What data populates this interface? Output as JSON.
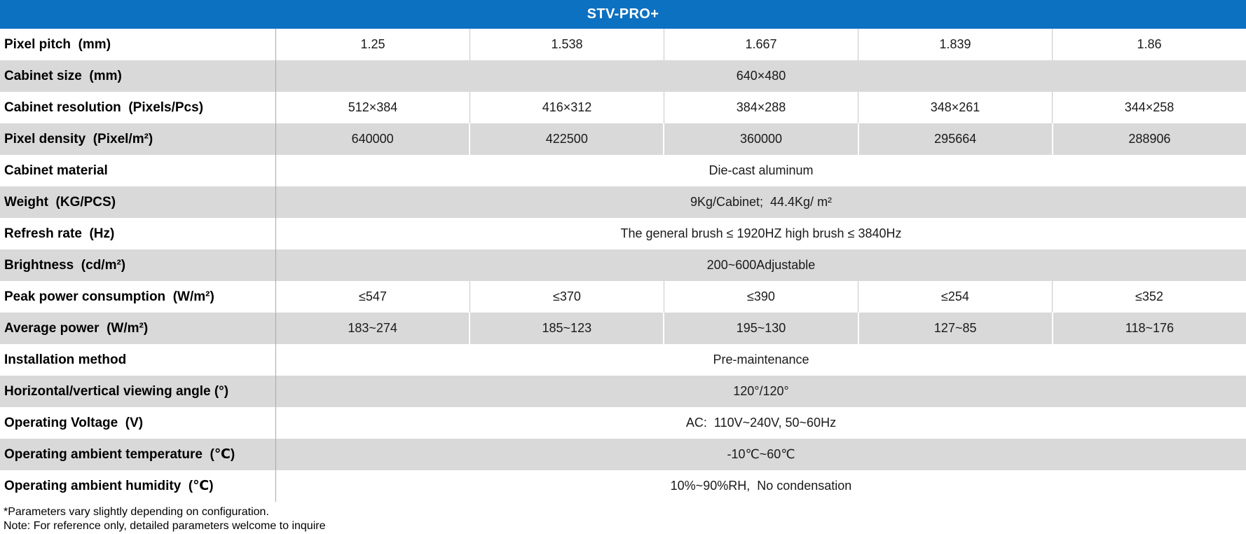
{
  "title": "STV-PRO+",
  "colors": {
    "header_bg": "#0d71c2",
    "header_text": "#ffffff",
    "row_alt_bg": "#d9d9d9",
    "divider": "#a9a9a9"
  },
  "table": {
    "rows": [
      {
        "label": "Pixel pitch  (mm)",
        "values": [
          "1.25",
          "1.538",
          "1.667",
          "1.839",
          "1.86"
        ]
      },
      {
        "label": "Cabinet size  (mm)",
        "span": "640×480"
      },
      {
        "label": "Cabinet resolution  (Pixels/Pcs)",
        "values": [
          "512×384",
          "416×312",
          "384×288",
          "348×261",
          "344×258"
        ]
      },
      {
        "label": "Pixel density  (Pixel/m²)",
        "values": [
          "640000",
          "422500",
          "360000",
          "295664",
          "288906"
        ]
      },
      {
        "label": "Cabinet material",
        "span": "Die-cast aluminum"
      },
      {
        "label": "Weight  (KG/PCS)",
        "span": "9Kg/Cabinet;  44.4Kg/ m²"
      },
      {
        "label": "Refresh rate  (Hz)",
        "span": "The general brush ≤ 1920HZ high brush ≤ 3840Hz"
      },
      {
        "label": "Brightness  (cd/m²)",
        "span": "200~600Adjustable"
      },
      {
        "label": "Peak power consumption  (W/m²)",
        "values": [
          "≤547",
          "≤370",
          "≤390",
          "≤254",
          "≤352"
        ]
      },
      {
        "label": "Average power  (W/m²)",
        "values": [
          "183~274",
          "185~123",
          "195~130",
          "127~85",
          "118~176"
        ]
      },
      {
        "label": "Installation method",
        "span": "Pre-maintenance"
      },
      {
        "label": "Horizontal/vertical viewing angle (°)",
        "span": "120°/120°"
      },
      {
        "label": "Operating Voltage  (V)",
        "span": "AC:  110V~240V, 50~60Hz"
      },
      {
        "label": "Operating ambient temperature  (℃)",
        "span": "-10℃~60℃"
      },
      {
        "label": "Operating ambient humidity  (℃)",
        "span": "10%~90%RH,  No condensation"
      }
    ]
  },
  "footnotes": [
    "*Parameters vary slightly depending on configuration.",
    "Note: For reference only, detailed parameters welcome to inquire"
  ]
}
